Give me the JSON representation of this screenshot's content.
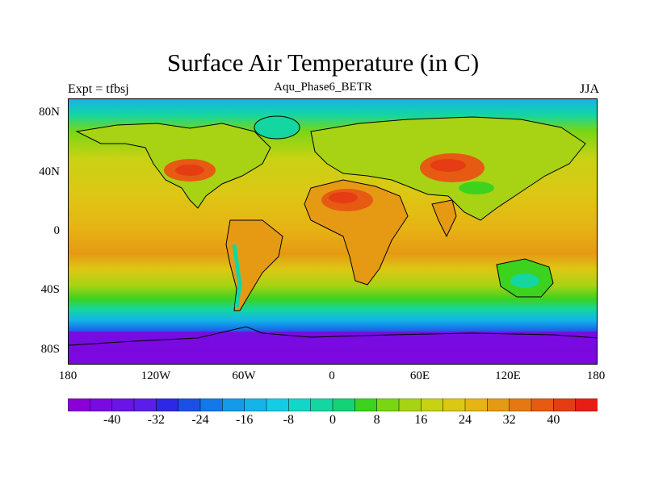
{
  "title": "Surface Air Temperature (in C)",
  "left_label": "Expt = tfbsj",
  "center_label": "Aqu_Phase6_BETR",
  "right_label": "JJA",
  "axes": {
    "lat_ticks": [
      "80N",
      "40N",
      "0",
      "40S",
      "80S"
    ],
    "lon_ticks": [
      "180",
      "120W",
      "60W",
      "0",
      "60E",
      "120E",
      "180"
    ]
  },
  "colorbar": {
    "colors": [
      "#8a00d6",
      "#7a0ae0",
      "#6a14e6",
      "#5a1ee8",
      "#2e28e6",
      "#1a50e6",
      "#1478e8",
      "#149ae8",
      "#14b4e8",
      "#14cce6",
      "#14d6c8",
      "#14d6a0",
      "#14d278",
      "#3cd21e",
      "#78d614",
      "#a8d214",
      "#c8d214",
      "#dcc814",
      "#e6b414",
      "#e69a14",
      "#e67814",
      "#e65a14",
      "#e63c14",
      "#e61e14"
    ],
    "tick_labels": [
      "-40",
      "-32",
      "-24",
      "-16",
      "-8",
      "0",
      "8",
      "16",
      "24",
      "32",
      "40"
    ]
  }
}
